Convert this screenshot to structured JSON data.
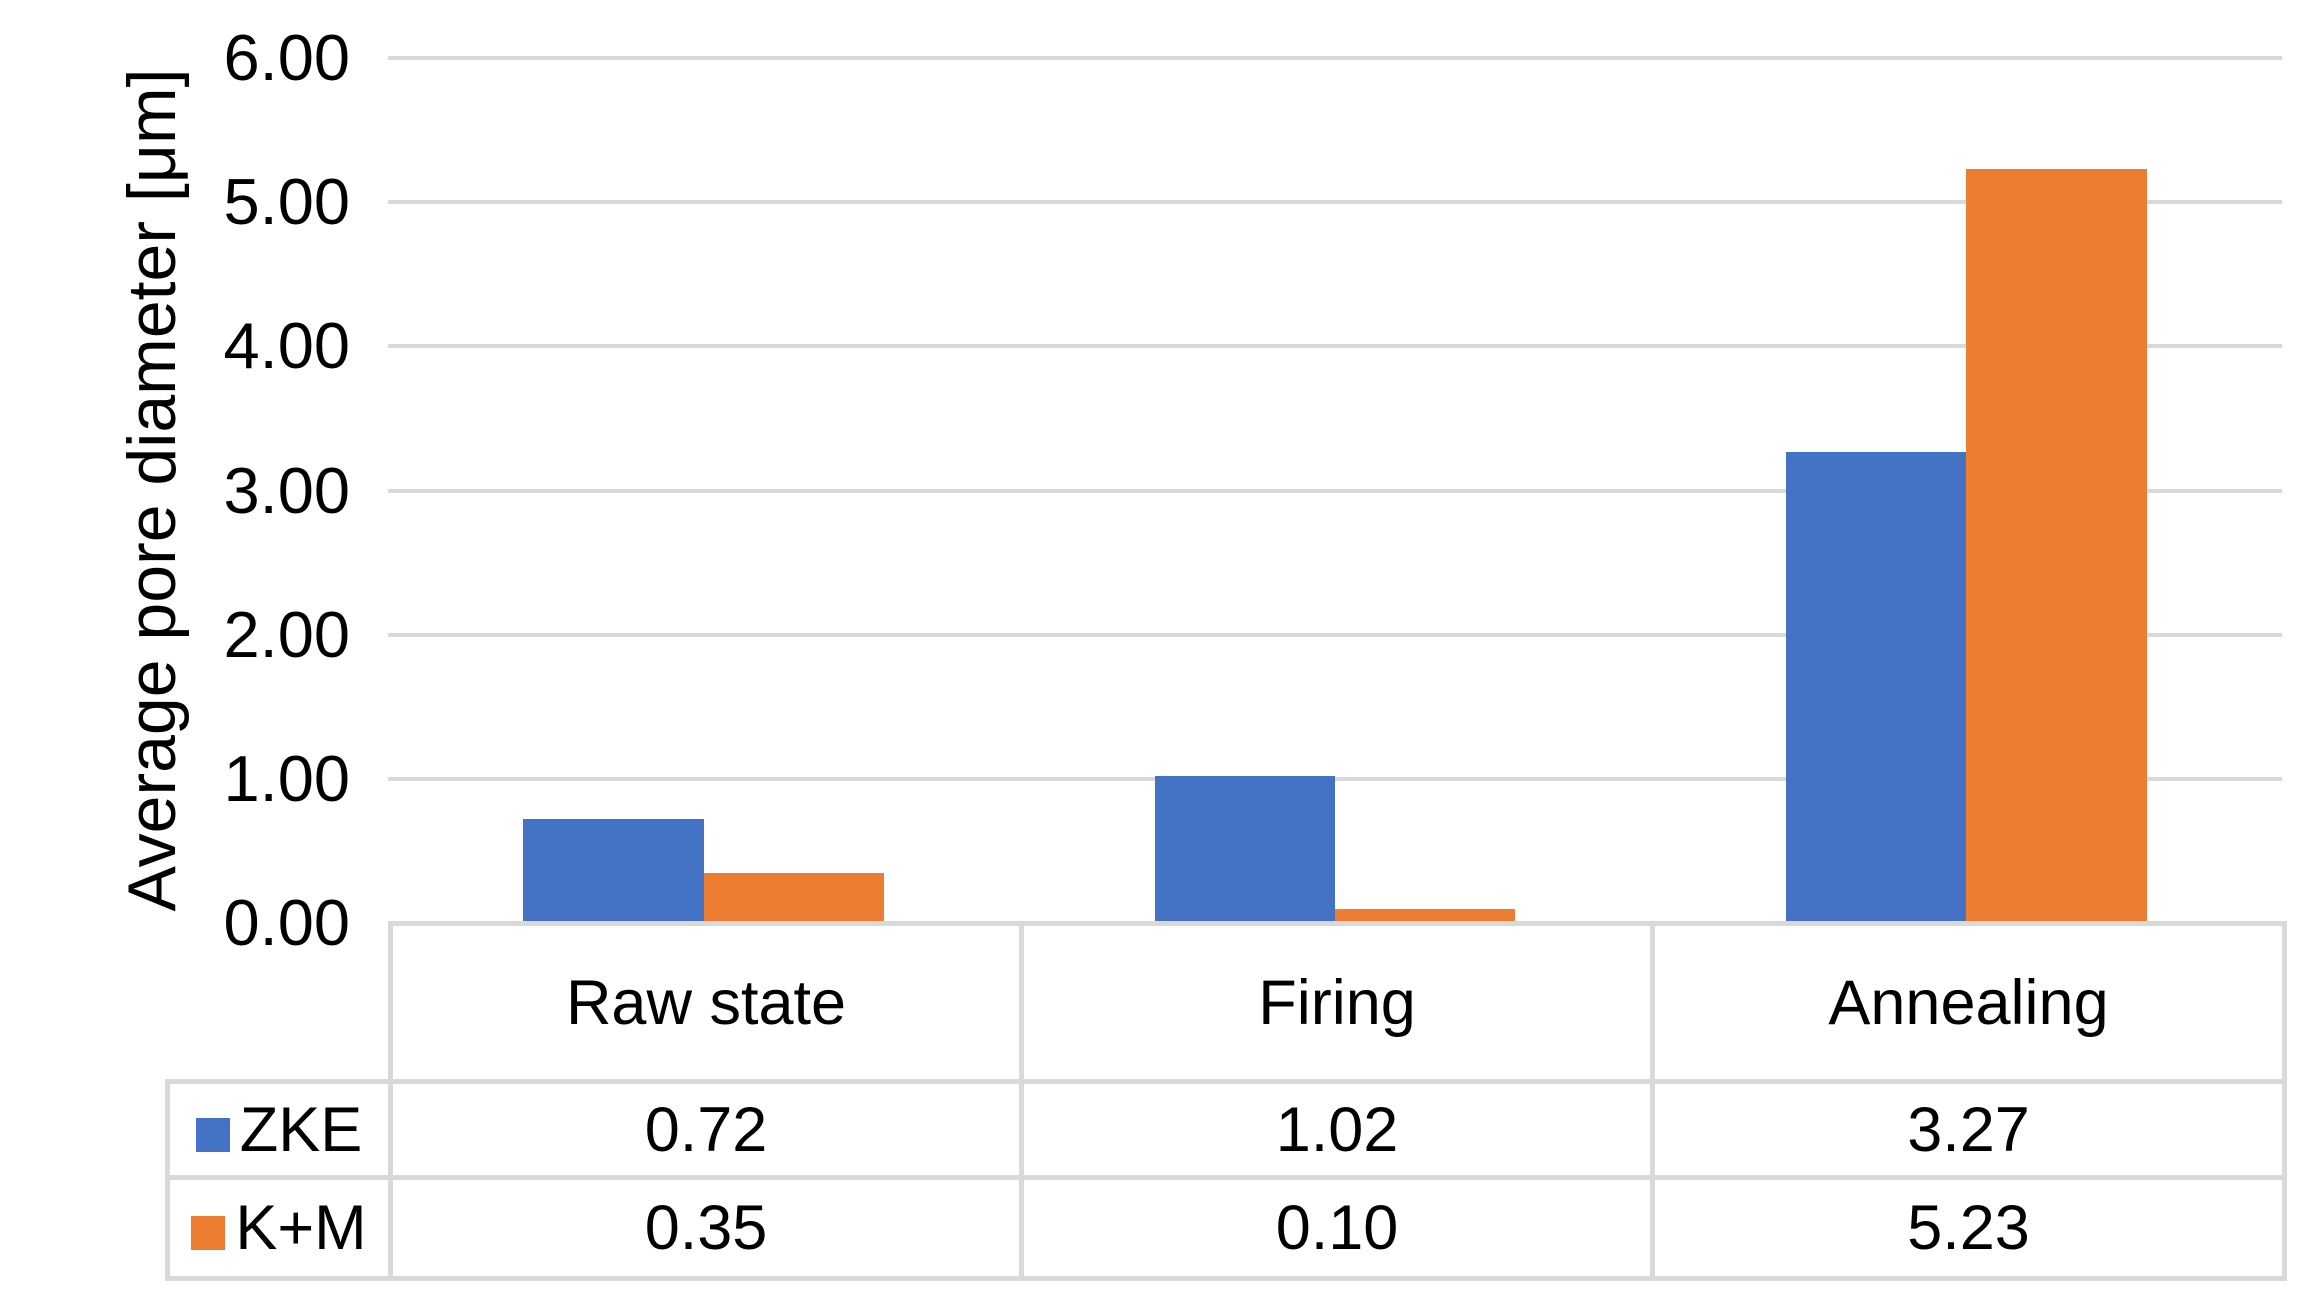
{
  "chart_data": {
    "type": "bar",
    "categories": [
      "Raw state",
      "Firing",
      "Annealing"
    ],
    "series": [
      {
        "name": "ZKE",
        "color": "#4472C4",
        "values": [
          0.72,
          1.02,
          3.27
        ]
      },
      {
        "name": "K+M",
        "color": "#ED7D31",
        "values": [
          0.35,
          0.1,
          5.23
        ]
      }
    ],
    "title": "",
    "xlabel": "",
    "ylabel": "Average pore diameter [μm]",
    "ylim": [
      0,
      6
    ],
    "ytick_step": 1,
    "ytick_labels": [
      "0.00",
      "1.00",
      "2.00",
      "3.00",
      "4.00",
      "5.00",
      "6.00"
    ],
    "grid": true,
    "gap_ratio": 3.5,
    "legend_position": "table-left"
  },
  "table": {
    "header": [
      "Raw state",
      "Firing",
      "Annealing"
    ],
    "rows": [
      {
        "label": "ZKE",
        "values": [
          "0.72",
          "1.02",
          "3.27"
        ]
      },
      {
        "label": "K+M",
        "values": [
          "0.35",
          "0.10",
          "5.23"
        ]
      }
    ]
  },
  "colors": {
    "series_blue": "#4472C4",
    "series_orange": "#ED7D31",
    "gridline": "#D9D9D9",
    "table_border": "#D9D9D9",
    "text": "#000000",
    "background": "#FFFFFF"
  }
}
